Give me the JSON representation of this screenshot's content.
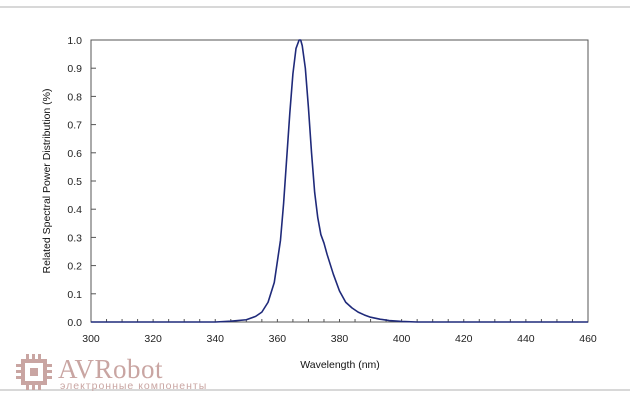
{
  "chart_data": {
    "type": "line",
    "title": "",
    "xlabel": "Wavelength (nm)",
    "ylabel": "Related Spectral Power Distribution (%)",
    "xlim": [
      300,
      460
    ],
    "ylim": [
      0,
      1.0
    ],
    "xticks": [
      300,
      320,
      340,
      360,
      380,
      400,
      420,
      440,
      460
    ],
    "yticks": [
      "0.0",
      "0.1",
      "0.2",
      "0.3",
      "0.4",
      "0.5",
      "0.6",
      "0.7",
      "0.8",
      "0.9",
      "1.0"
    ],
    "grid": false,
    "line_color": "#1f2a7a",
    "series": [
      {
        "x": [
          300,
          340,
          345,
          350,
          353,
          355,
          357,
          359,
          361,
          362,
          363,
          364,
          365,
          366,
          367,
          367.5,
          368,
          369,
          370,
          371,
          372,
          373,
          374,
          375,
          376,
          378,
          380,
          382,
          384,
          386,
          388,
          390,
          393,
          396,
          400,
          405,
          460
        ],
        "y": [
          0.0,
          0.0,
          0.003,
          0.008,
          0.02,
          0.035,
          0.07,
          0.14,
          0.29,
          0.42,
          0.58,
          0.74,
          0.88,
          0.97,
          1.0,
          1.0,
          0.98,
          0.9,
          0.76,
          0.6,
          0.46,
          0.37,
          0.31,
          0.28,
          0.24,
          0.17,
          0.11,
          0.07,
          0.05,
          0.035,
          0.025,
          0.017,
          0.01,
          0.005,
          0.002,
          0.0,
          0.0
        ]
      }
    ]
  },
  "watermark": {
    "brand": "AVRobot",
    "tagline": "электронные компоненты",
    "color": "#c9a5a2"
  }
}
